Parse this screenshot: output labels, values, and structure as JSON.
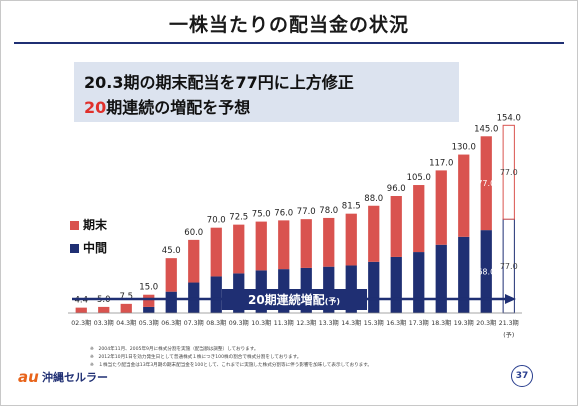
{
  "title": "一株当たりの配当金の状況",
  "headline": {
    "line1": "20.3期の期末配当を77円に上方修正",
    "line2_highlight": "20",
    "line2_rest": "期連続の増配を予想"
  },
  "legend": {
    "year_end": {
      "label": "期末",
      "color": "#d9534f"
    },
    "interim": {
      "label": "中間",
      "color": "#1f2f73"
    }
  },
  "banner": {
    "main": "20期連続増配",
    "suffix": "(予)"
  },
  "forecast_mark": "(予)",
  "notes": [
    "※　2004年11月、2005年9月に株式分割を実施（配当額は調整）しております。",
    "※　2012年10月1日を効力発生日として普通株式１株につき100株の割合で株式分割をしております。",
    "※　１株当たり配当金は13年3月期の期末配当金を100として、これまでに実施した株式分割等に伴う影響を加味して表示しております。"
  ],
  "logo": {
    "mark": "au",
    "text": "沖縄セルラー"
  },
  "page_number": "37",
  "chart_data": {
    "type": "bar",
    "stacked": true,
    "categories": [
      "02.3期",
      "03.3期",
      "04.3期",
      "05.3期",
      "06.3期",
      "07.3期",
      "08.3期",
      "09.3期",
      "10.3期",
      "11.3期",
      "12.3期",
      "13.3期",
      "14.3期",
      "15.3期",
      "16.3期",
      "17.3期",
      "18.3期",
      "19.3期",
      "20.3期",
      "21.3期"
    ],
    "totals": [
      4.4,
      5.0,
      7.5,
      15.0,
      45.0,
      60.0,
      70.0,
      72.5,
      75.0,
      76.0,
      77.0,
      78.0,
      81.5,
      88.0,
      96.0,
      105.0,
      117.0,
      130.0,
      145.0,
      154.0
    ],
    "total_labels": [
      "4.4",
      "5.0",
      "7.5",
      "15.0",
      "45.0",
      "60.0",
      "70.0",
      "72.5",
      "75.0",
      "76.0",
      "77.0",
      "78.0",
      "81.5",
      "88.0",
      "96.0",
      "105.0",
      "117.0",
      "130.0",
      "145.0",
      "154.0"
    ],
    "series": [
      {
        "name": "中間",
        "color": "#1f2f73",
        "values": [
          0,
          0,
          0,
          5.0,
          17.5,
          25.0,
          30.0,
          32.5,
          35.0,
          36.0,
          37.0,
          38.0,
          39.0,
          42.0,
          46.0,
          50.0,
          56.0,
          62.5,
          68.0,
          77.0
        ]
      },
      {
        "name": "期末",
        "color": "#d9534f",
        "values": [
          4.4,
          5.0,
          7.5,
          10.0,
          27.5,
          35.0,
          40.0,
          40.0,
          40.0,
          40.0,
          40.0,
          40.0,
          42.5,
          46.0,
          50.0,
          55.0,
          61.0,
          67.5,
          77.0,
          77.0
        ]
      }
    ],
    "segment_labels": [
      {
        "index": 18,
        "series": "中間",
        "text": "68.0"
      },
      {
        "index": 18,
        "series": "期末",
        "text": "77.0"
      },
      {
        "index": 19,
        "series": "中間",
        "text": "77.0"
      },
      {
        "index": 19,
        "series": "期末",
        "text": "77.0"
      }
    ],
    "outlined_segments": [
      {
        "index": 19,
        "series": "期末"
      },
      {
        "index": 19,
        "series": "中間"
      }
    ],
    "ylim": [
      0,
      160
    ],
    "grid": false
  }
}
